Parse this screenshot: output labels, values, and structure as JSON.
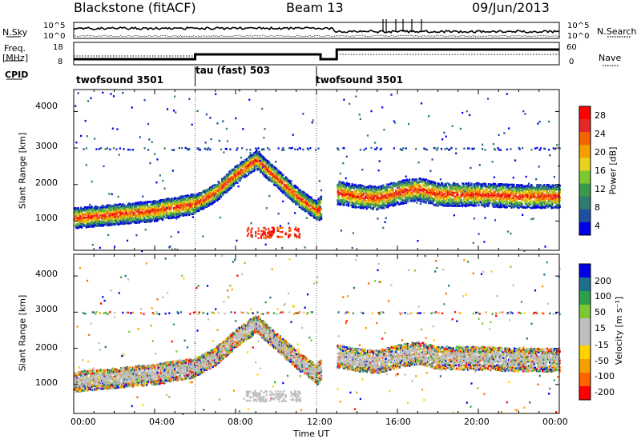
{
  "header": {
    "station": "Blackstone (fitACF)",
    "beam": "Beam 13",
    "date": "09/Jun/2013"
  },
  "status_panels": {
    "nsky": {
      "label": "N.Sky",
      "ticks": [
        "10^5",
        "10^0"
      ]
    },
    "nsearch": {
      "label": "N.Search",
      "ticks": [
        "10^5",
        "10^0"
      ]
    },
    "freq": {
      "label_line1": "Freq.",
      "label_line2": "[MHz]",
      "ticks": [
        "18",
        "8"
      ]
    },
    "nave": {
      "label": "Nave",
      "ticks": [
        "60",
        "0"
      ]
    },
    "cpid": {
      "label": "CPID",
      "segments": [
        {
          "name": "twofsound 3501",
          "start_h": 0,
          "end_h": 6
        },
        {
          "name": "tau (fast) 503",
          "start_h": 6,
          "end_h": 12
        },
        {
          "name": "twofsound 3501",
          "start_h": 12,
          "end_h": 24
        }
      ]
    }
  },
  "colors": {
    "power_scale": [
      "#0000e6",
      "#1e50a0",
      "#2e7d6e",
      "#3a9a4a",
      "#7cc832",
      "#e6d21e",
      "#f5a000",
      "#f56400",
      "#e62828",
      "#ff0000"
    ],
    "velocity_scale": [
      "#ff0000",
      "#ff6400",
      "#f5a000",
      "#ffd200",
      "#bebebe",
      "#bebebe",
      "#7cc832",
      "#2ea04a",
      "#1e6e8c",
      "#0000e6"
    ]
  },
  "chart_data": [
    {
      "type": "heatmap",
      "panel": "power",
      "ylabel": "Slant Range [km]",
      "yticks": [
        "4000",
        "3000",
        "2000",
        "1000"
      ],
      "xlim": [
        0,
        24
      ],
      "ylim": [
        200,
        4600
      ],
      "colorbar": {
        "label": "Power [dB]",
        "ticks": [
          "28",
          "24",
          "20",
          "16",
          "12",
          "8",
          "4"
        ],
        "range": [
          0,
          32
        ]
      },
      "features": [
        {
          "desc": "main band",
          "times_h": [
            0,
            2,
            4,
            6,
            7,
            8,
            9,
            10,
            11,
            12,
            13,
            14,
            15,
            16,
            17,
            18,
            20,
            22,
            24
          ],
          "ranges_km": [
            1100,
            1200,
            1300,
            1500,
            1800,
            2300,
            2700,
            2200,
            1700,
            1300,
            1800,
            1700,
            1650,
            1800,
            1900,
            1750,
            1750,
            1700,
            1700
          ]
        },
        {
          "desc": "low band",
          "times_h": [
            8.6,
            9.3,
            10.0,
            11.0
          ],
          "ranges_km": [
            500,
            700,
            800,
            700
          ]
        }
      ]
    },
    {
      "type": "heatmap",
      "panel": "velocity",
      "ylabel": "Slant Range [km]",
      "xlabel": "Time UT",
      "yticks": [
        "4000",
        "3000",
        "2000",
        "1000"
      ],
      "xticks": [
        "00:00",
        "04:00",
        "08:00",
        "12:00",
        "16:00",
        "20:00",
        "00:00"
      ],
      "xlim": [
        0,
        24
      ],
      "ylim": [
        200,
        4600
      ],
      "colorbar": {
        "label": "Velocity [m s⁻¹]",
        "ticks": [
          "200",
          "100",
          "50",
          "15",
          "-15",
          "-50",
          "-100",
          "-200"
        ],
        "range": [
          -250,
          250
        ]
      }
    }
  ]
}
